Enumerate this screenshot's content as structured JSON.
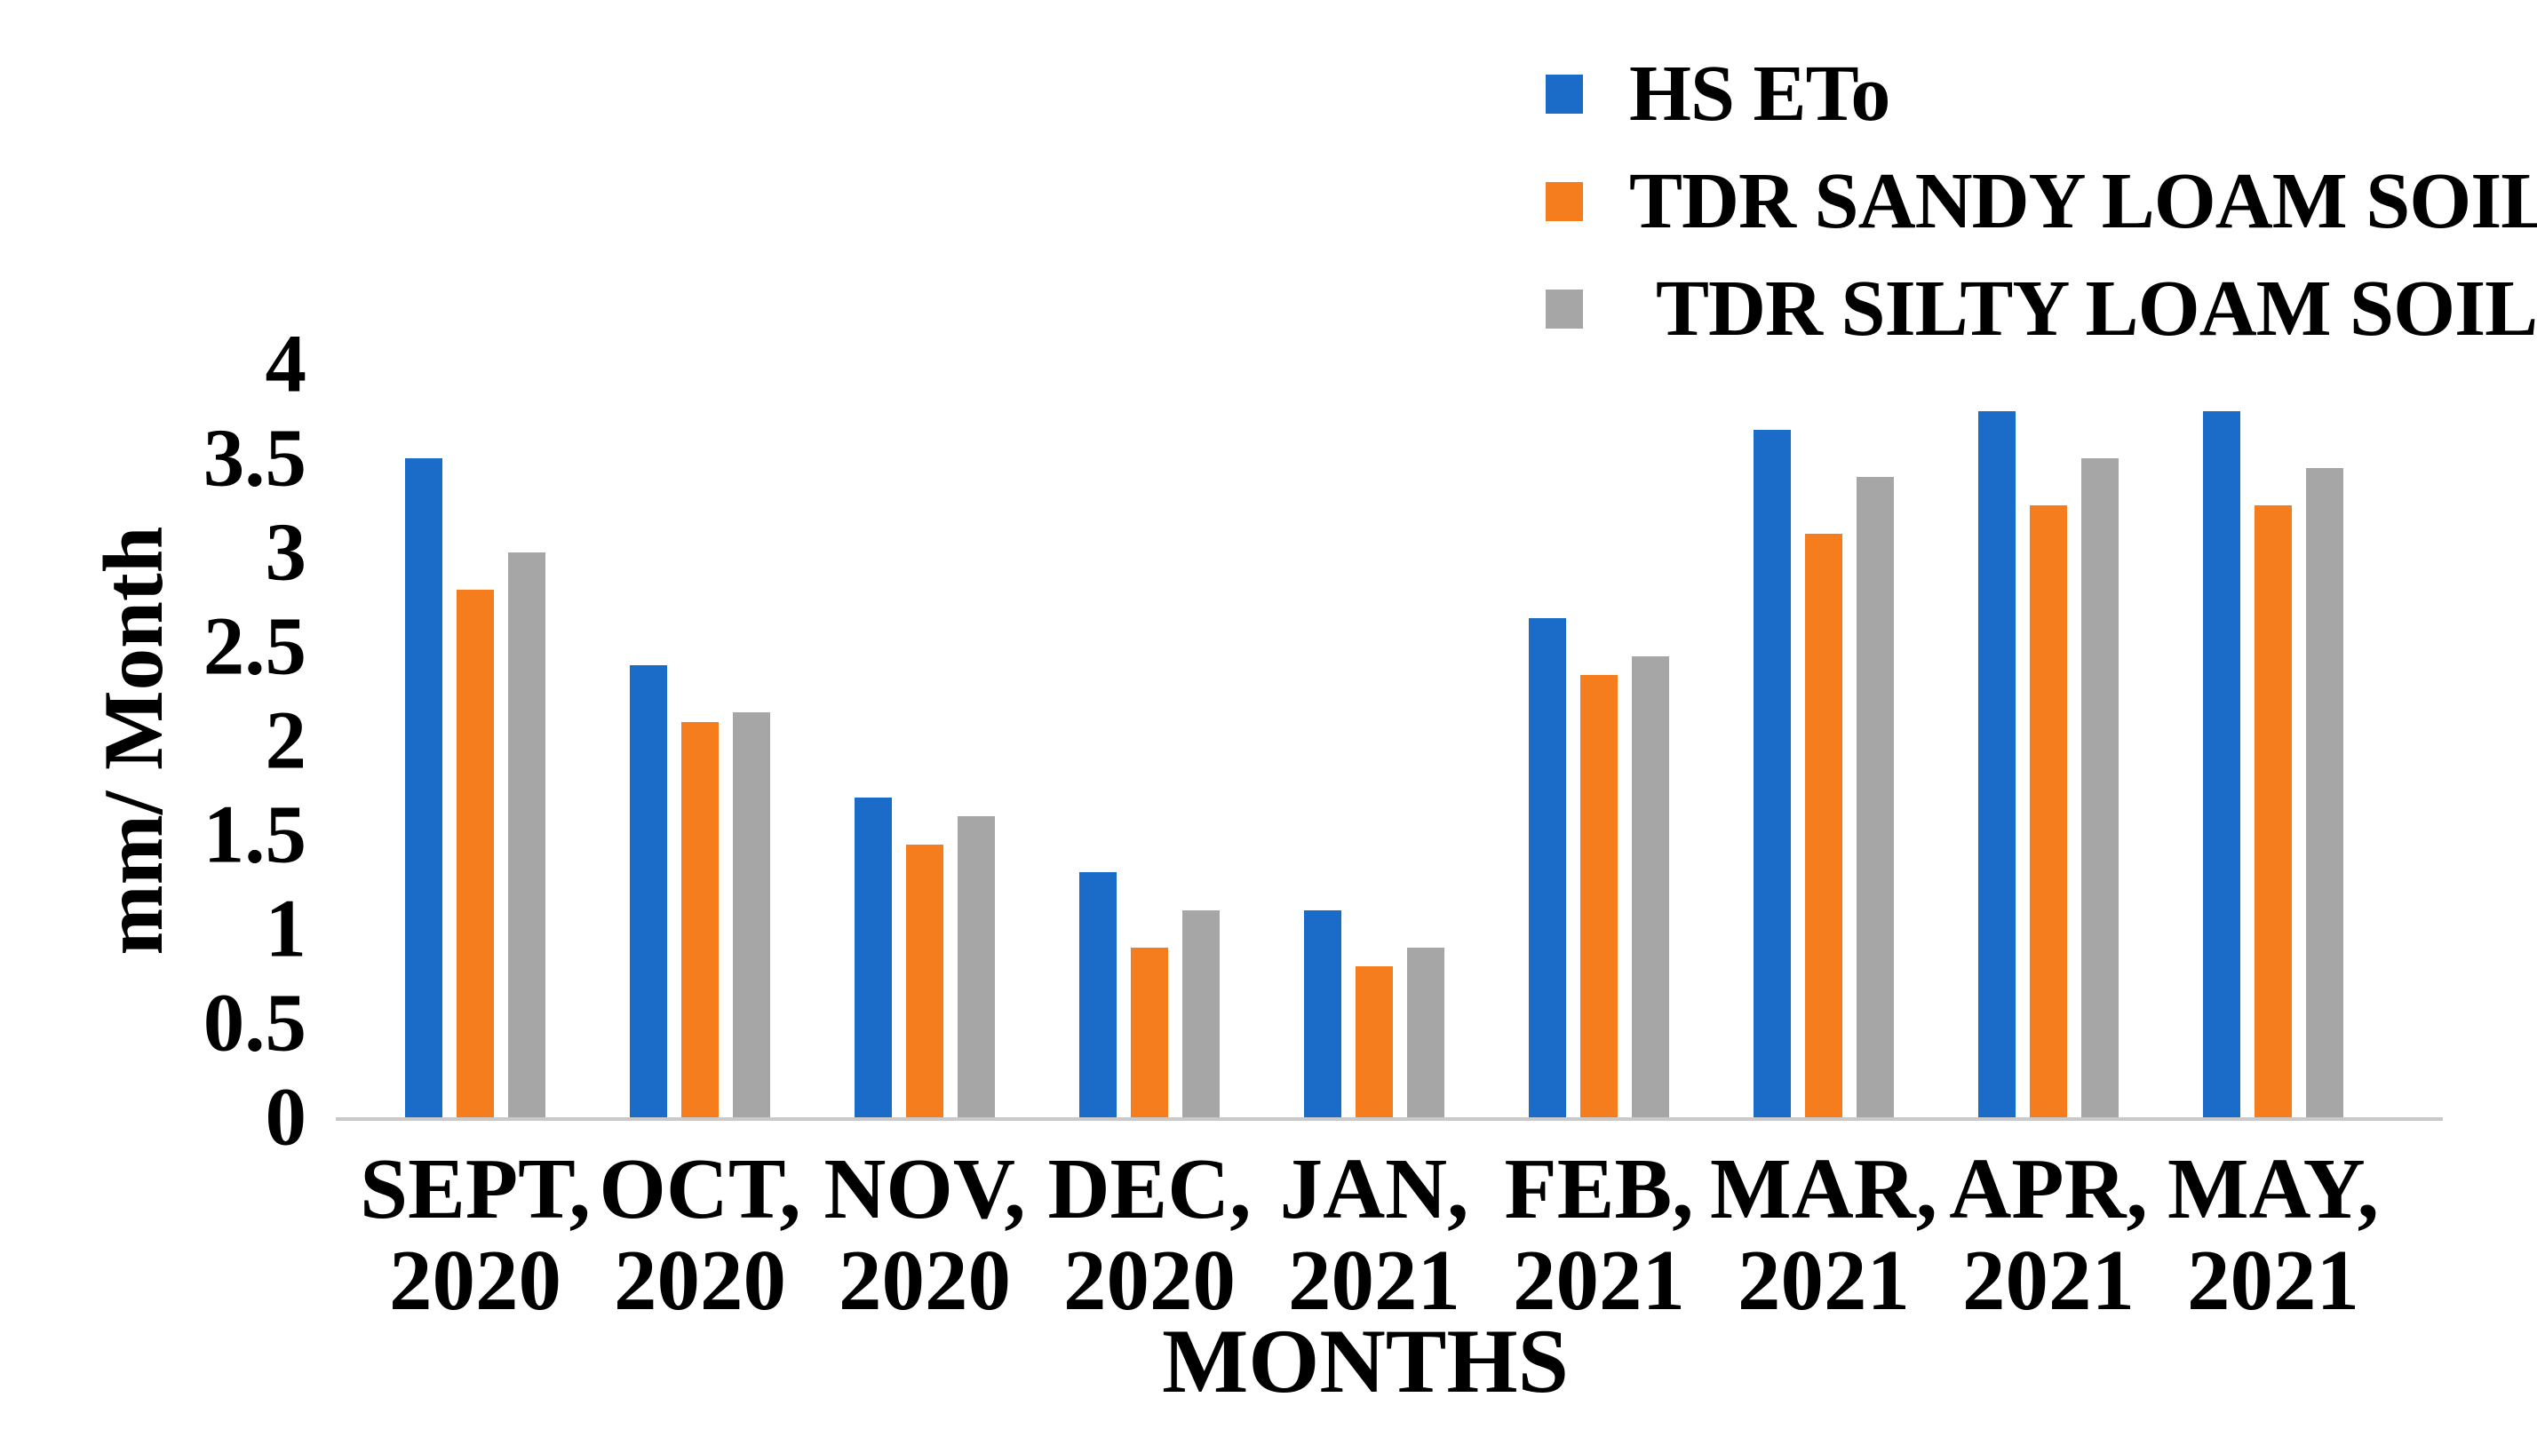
{
  "chart_data": {
    "type": "bar",
    "title": "",
    "categories": [
      "SEPT, 2020",
      "OCT, 2020",
      "NOV, 2020",
      "DEC, 2020",
      "JAN, 2021",
      "FEB, 2021",
      "MAR, 2021",
      "APR, 2021",
      "MAY, 2021"
    ],
    "series": [
      {
        "name": "HS ETo",
        "color": "#1A6CC8",
        "values": [
          3.5,
          2.4,
          1.7,
          1.3,
          1.1,
          2.65,
          3.65,
          3.75,
          3.75
        ]
      },
      {
        "name": "TDR SANDY LOAM SOIL",
        "color": "#F67D1E",
        "values": [
          2.8,
          2.1,
          1.45,
          0.9,
          0.8,
          2.35,
          3.1,
          3.25,
          3.25
        ]
      },
      {
        "name": "TDR SILTY LOAM SOIL",
        "color": "#A6A6A6",
        "values": [
          3.0,
          2.15,
          1.6,
          1.1,
          0.9,
          2.45,
          3.4,
          3.5,
          3.45
        ]
      }
    ],
    "xlabel": "MONTHS",
    "ylabel": "mm/ Month",
    "ylim": [
      0,
      4
    ],
    "ytick_step": 0.5,
    "yticks": [
      "0",
      "0.5",
      "1",
      "1.5",
      "2",
      "2.5",
      "3",
      "3.5",
      "4"
    ],
    "grid": false,
    "legend_position": "top-right"
  },
  "colors": {
    "background": "#FFFFFF",
    "axis_line": "#C9C9C9",
    "text": "#000000"
  }
}
